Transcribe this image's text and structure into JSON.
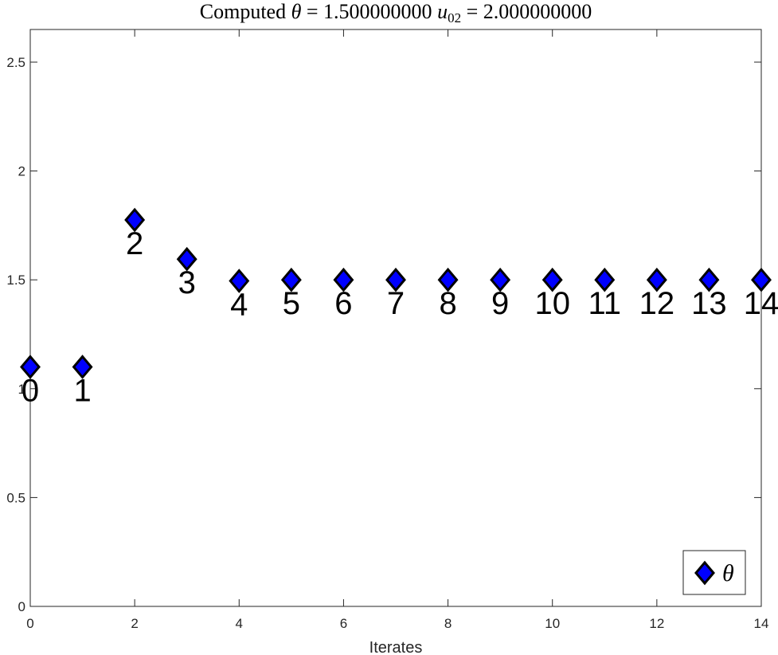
{
  "chart_data": {
    "type": "scatter",
    "title": "Computed θ = 1.500000000 u02 = 2.000000000",
    "title_parts": {
      "prefix": "Computed ",
      "theta": "θ",
      "theta_eq": " = 1.500000000 ",
      "u": "u",
      "u_sub": "02",
      "u_eq": " = 2.000000000"
    },
    "xlabel": "Iterates",
    "ylabel": "",
    "xlim": [
      0,
      14
    ],
    "ylim": [
      0,
      2.65
    ],
    "xticks": [
      0,
      2,
      4,
      6,
      8,
      10,
      12,
      14
    ],
    "yticks": [
      0,
      0.5,
      1,
      1.5,
      2,
      2.5
    ],
    "ytick_labels": [
      "0",
      "0.5",
      "1",
      "1.5",
      "2",
      "2.5"
    ],
    "grid": false,
    "legend_position": "bottom-right",
    "series": [
      {
        "name": "θ",
        "marker": "diamond",
        "color": "#0000ff",
        "edge_color": "#000000",
        "x": [
          0,
          1,
          2,
          3,
          4,
          5,
          6,
          7,
          8,
          9,
          10,
          11,
          12,
          13,
          14
        ],
        "y": [
          1.1,
          1.1,
          1.775,
          1.595,
          1.495,
          1.5,
          1.5,
          1.5,
          1.5,
          1.5,
          1.5,
          1.5,
          1.5,
          1.5,
          1.5
        ],
        "point_labels": [
          "0",
          "1",
          "2",
          "3",
          "4",
          "5",
          "6",
          "7",
          "8",
          "9",
          "10",
          "11",
          "12",
          "13",
          "14"
        ]
      }
    ]
  }
}
